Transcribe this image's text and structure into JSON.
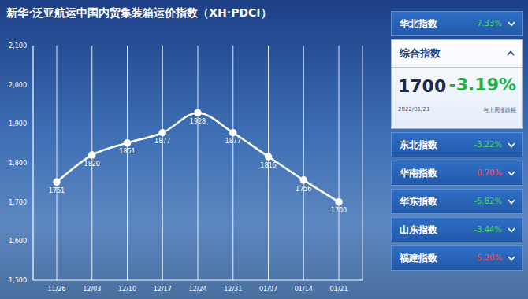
{
  "chart_data": {
    "type": "line",
    "title": "新华·泛亚航运中国内贸集装箱运价指数（XH·PDCI）",
    "categories": [
      "11/26",
      "12/03",
      "12/10",
      "12/17",
      "12/24",
      "12/31",
      "01/07",
      "01/14",
      "01/21"
    ],
    "values": [
      1751,
      1820,
      1851,
      1877,
      1928,
      1877,
      1816,
      1756,
      1700
    ],
    "color": "#ffffff",
    "marker": "circle",
    "ylim": [
      1500,
      2100
    ],
    "yticks": [
      {
        "value": 1500,
        "label": "1,500"
      },
      {
        "value": 1600,
        "label": "1,600"
      },
      {
        "value": 1700,
        "label": "1,700"
      },
      {
        "value": 1800,
        "label": "1,800"
      },
      {
        "value": 1900,
        "label": "1,900"
      },
      {
        "value": 2000,
        "label": "2,000"
      },
      {
        "value": 2100,
        "label": "2,100"
      }
    ],
    "grid": true,
    "data_labels": true
  },
  "side_panel": {
    "items": [
      {
        "name": "华北指数",
        "change": "-7.33%",
        "color": "#3ddc5a"
      },
      {
        "name": "综合指数",
        "value": "1700",
        "change": "-3.19%",
        "color": "#22b14c",
        "date": "2022/01/21",
        "note": "与上周涨跌幅"
      },
      {
        "name": "东北指数",
        "change": "-3.22%",
        "color": "#3ddc5a"
      },
      {
        "name": "华南指数",
        "change": "0.70%",
        "color": "#ff4d4d"
      },
      {
        "name": "华东指数",
        "change": "-5.82%",
        "color": "#3ddc5a"
      },
      {
        "name": "山东指数",
        "change": "-3.44%",
        "color": "#3ddc5a"
      },
      {
        "name": "福建指数",
        "change": "5.20%",
        "color": "#ff4d4d"
      }
    ]
  }
}
